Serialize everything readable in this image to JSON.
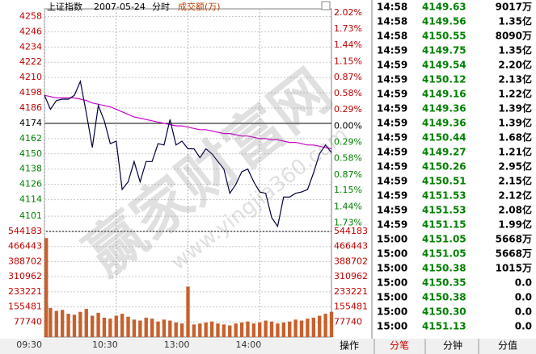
{
  "chart_data": {
    "type": "line",
    "title": "上证指数",
    "date": "2007-05-24",
    "subtitle": "分时",
    "volume_label": "成交额(万)",
    "x": [
      0,
      5,
      10,
      15,
      20,
      25,
      30,
      35,
      40,
      45,
      50,
      55,
      60,
      65,
      70,
      75,
      80,
      85,
      90,
      95,
      100,
      105,
      110,
      115,
      120,
      125,
      130,
      135,
      140,
      145,
      150,
      155,
      160,
      165,
      170,
      175,
      180,
      185,
      190,
      195,
      200,
      205,
      210,
      215,
      220,
      225,
      230,
      235,
      240
    ],
    "xlim": [
      0,
      240
    ],
    "xticks": [
      {
        "value": 0,
        "label": "09:30"
      },
      {
        "value": 60,
        "label": "10:30"
      },
      {
        "value": 120,
        "label": "13:00"
      },
      {
        "value": 180,
        "label": "14:00"
      }
    ],
    "series": [
      {
        "color": "#000040",
        "values": [
          4196,
          4185,
          4192,
          4193,
          4193,
          4196,
          4207,
          4182,
          4155,
          4188,
          4176,
          4158,
          4160,
          4122,
          4128,
          4144,
          4128,
          4144,
          4144,
          4158,
          4157,
          4177,
          4157,
          4160,
          4154,
          4154,
          4147,
          4154,
          4150,
          4144,
          4138,
          4119,
          4126,
          4136,
          4138,
          4128,
          4120,
          4119,
          4100,
          4093,
          4116,
          4116,
          4119,
          4120,
          4122,
          4135,
          4150,
          4157,
          4151
        ]
      },
      {
        "color": "#cc00cc",
        "values": [
          4196,
          4195,
          4194,
          4194,
          4194,
          4194,
          4193,
          4192,
          4190,
          4189,
          4188,
          4187,
          4185,
          4183,
          4181,
          4179,
          4178,
          4177,
          4176,
          4175,
          4174,
          4173,
          4172,
          4172,
          4171,
          4170,
          4169,
          4169,
          4168,
          4167,
          4166,
          4166,
          4165,
          4164,
          4164,
          4163,
          4162,
          4162,
          4161,
          4161,
          4160,
          4159,
          4159,
          4158,
          4157,
          4157,
          4156,
          4155,
          4154
        ]
      }
    ],
    "ylim": [
      4089,
      4264
    ],
    "yticks": [
      4258,
      4246,
      4234,
      4222,
      4210,
      4198,
      4186,
      4174,
      4162,
      4150,
      4138,
      4126,
      4114,
      4101
    ],
    "y2lim": [
      -1.88,
      2.09
    ],
    "y2ticks": [
      {
        "value": 2.02,
        "label": "2.02%"
      },
      {
        "value": 1.73,
        "label": "1.73%"
      },
      {
        "value": 1.44,
        "label": "1.44%"
      },
      {
        "value": 1.15,
        "label": "1.15%"
      },
      {
        "value": 0.87,
        "label": "0.87%"
      },
      {
        "value": 0.58,
        "label": "0.58%"
      },
      {
        "value": 0.29,
        "label": "0.29%"
      },
      {
        "value": 0,
        "label": "0.00%"
      },
      {
        "value": -0.29,
        "label": "0.29%"
      },
      {
        "value": -0.58,
        "label": "0.58%"
      },
      {
        "value": -0.87,
        "label": "0.87%"
      },
      {
        "value": -1.15,
        "label": "1.15%"
      },
      {
        "value": -1.44,
        "label": "1.44%"
      },
      {
        "value": -1.73,
        "label": "1.73%"
      }
    ],
    "volume": {
      "color": "#c8602c",
      "values": [
        510000,
        150000,
        135000,
        140000,
        120000,
        115000,
        130000,
        145000,
        110000,
        125000,
        100000,
        95000,
        110000,
        120000,
        105000,
        90000,
        85000,
        100000,
        95000,
        80000,
        90000,
        85000,
        75000,
        70000,
        260000,
        65000,
        70000,
        75000,
        80000,
        70000,
        65000,
        60000,
        70000,
        75000,
        80000,
        70000,
        75000,
        85000,
        80000,
        70000,
        75000,
        80000,
        90000,
        85000,
        95000,
        100000,
        110000,
        120000,
        130000
      ]
    },
    "volume_ylim": [
      0,
      544183
    ],
    "volume_yticks": [
      544183,
      466443,
      388702,
      310962,
      233221,
      155481,
      77740
    ],
    "grid": true
  },
  "trade_table": {
    "rows": [
      [
        "14:58",
        "4149.63",
        "9017万"
      ],
      [
        "14:58",
        "4149.56",
        "1.35亿"
      ],
      [
        "14:58",
        "4150.55",
        "8090万"
      ],
      [
        "14:59",
        "4149.75",
        "1.35亿"
      ],
      [
        "14:59",
        "4149.54",
        "2.20亿"
      ],
      [
        "14:59",
        "4150.12",
        "2.13亿"
      ],
      [
        "14:59",
        "4149.16",
        "1.22亿"
      ],
      [
        "14:59",
        "4149.36",
        "1.39亿"
      ],
      [
        "14:59",
        "4149.36",
        "1.39亿"
      ],
      [
        "14:59",
        "4150.44",
        "1.68亿"
      ],
      [
        "14:59",
        "4149.27",
        "1.21亿"
      ],
      [
        "14:59",
        "4150.26",
        "2.95亿"
      ],
      [
        "14:59",
        "4150.51",
        "2.15亿"
      ],
      [
        "14:59",
        "4151.53",
        "2.12亿"
      ],
      [
        "14:59",
        "4151.53",
        "2.08亿"
      ],
      [
        "14:59",
        "4151.15",
        "1.99亿"
      ],
      [
        "15:00",
        "4151.05",
        "5668万"
      ],
      [
        "15:00",
        "4151.05",
        "5668万"
      ],
      [
        "15:00",
        "4150.38",
        "1015万"
      ],
      [
        "15:00",
        "4150.35",
        "0.0"
      ],
      [
        "15:00",
        "4150.38",
        "0.0"
      ],
      [
        "15:00",
        "4150.30",
        "0.0"
      ],
      [
        "15:00",
        "4151.13",
        "0.0"
      ]
    ]
  },
  "tabs": [
    "操作",
    "分笔",
    "分钟",
    "分值"
  ],
  "watermark": {
    "text": "赢家财富网",
    "url": "www.yingjia360.com"
  }
}
